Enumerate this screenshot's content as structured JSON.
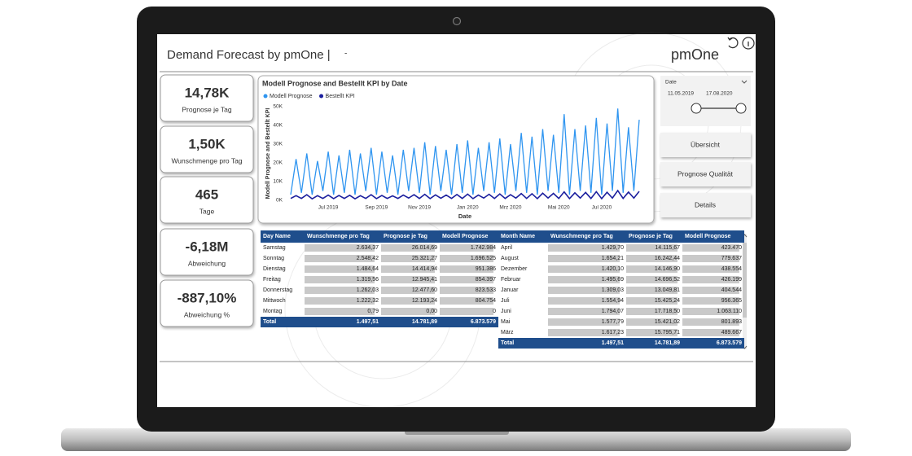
{
  "header": {
    "title": "Demand Forecast by pmOne |",
    "subtitle": "-",
    "logo": "pmOne"
  },
  "cards": [
    {
      "value": "14,78K",
      "label": "Prognose je Tag"
    },
    {
      "value": "1,50K",
      "label": "Wunschmenge pro Tag"
    },
    {
      "value": "465",
      "label": "Tage"
    },
    {
      "value": "-6,18M",
      "label": "Abweichung"
    },
    {
      "value": "-887,10%",
      "label": "Abweichung %"
    }
  ],
  "slicer": {
    "label": "Date",
    "start": "11.05.2019",
    "end": "17.08.2020"
  },
  "buttons": [
    "Übersicht",
    "Prognose Qualität",
    "Details"
  ],
  "chart_data": {
    "type": "line",
    "title": "Modell Prognose and Bestellt KPI by Date",
    "x_label": "Date",
    "y_label": "Modell Prognose and Bestellt KPI",
    "categories": [
      null,
      null,
      null,
      null,
      null,
      null,
      null,
      "Jul 2019",
      null,
      null,
      null,
      null,
      null,
      null,
      null,
      null,
      "Sep 2019",
      null,
      null,
      null,
      null,
      null,
      null,
      null,
      "Nov 2019",
      null,
      null,
      null,
      null,
      null,
      null,
      null,
      null,
      "Jan 2020",
      null,
      null,
      null,
      null,
      null,
      null,
      null,
      "Mrz 2020",
      null,
      null,
      null,
      null,
      null,
      null,
      null,
      null,
      "Mai 2020",
      null,
      null,
      null,
      null,
      null,
      null,
      null,
      "Jul 2020",
      null,
      null,
      null,
      null,
      null,
      null,
      null
    ],
    "series": [
      {
        "name": "Modell Prognose",
        "color": "#2f95f0",
        "values": [
          3000,
          22000,
          4000,
          25000,
          3000,
          21000,
          5000,
          26000,
          3000,
          24000,
          4000,
          27000,
          3000,
          25000,
          5000,
          28000,
          3000,
          26000,
          4000,
          24000,
          3000,
          27000,
          5000,
          28000,
          4000,
          31000,
          3000,
          29000,
          5000,
          27000,
          3000,
          30000,
          4000,
          32000,
          3000,
          28000,
          5000,
          31000,
          4000,
          33000,
          3000,
          30000,
          5000,
          36000,
          4000,
          34000,
          3000,
          38000,
          5000,
          35000,
          4000,
          46000,
          3000,
          38000,
          5000,
          40000,
          4000,
          44000,
          3000,
          41000,
          5000,
          49000,
          4000,
          39000,
          5000,
          43000
        ]
      },
      {
        "name": "Bestellt KPI",
        "color": "#1b1f9e",
        "values": [
          1000,
          2500,
          1000,
          3000,
          800,
          2500,
          1000,
          2800,
          900,
          2600,
          1000,
          2700,
          800,
          2500,
          1000,
          3000,
          900,
          2600,
          1000,
          2400,
          1000,
          2800,
          1200,
          3000,
          1000,
          3200,
          900,
          2900,
          1100,
          2800,
          1000,
          3100,
          1000,
          3300,
          900,
          2800,
          1200,
          3200,
          1000,
          3400,
          1000,
          3000,
          1200,
          3600,
          1000,
          3500,
          900,
          3800,
          1200,
          3700,
          1000,
          4500,
          900,
          4000,
          1200,
          4200,
          1000,
          4600,
          900,
          4300,
          1200,
          5200,
          1000,
          4400,
          1200,
          4800
        ]
      }
    ],
    "ylim": [
      0,
      50000
    ],
    "yticks": [
      {
        "value": 0,
        "label": "0K"
      },
      {
        "value": 10000,
        "label": "10K"
      },
      {
        "value": 20000,
        "label": "20K"
      },
      {
        "value": 30000,
        "label": "30K"
      },
      {
        "value": 40000,
        "label": "40K"
      },
      {
        "value": 50000,
        "label": "50K"
      }
    ],
    "grid": false
  },
  "tables": [
    {
      "columns": [
        "Day Name",
        "Wunschmenge pro Tag",
        "Prognose je Tag",
        "Modell Prognose"
      ],
      "rows": [
        [
          "Samstag",
          "2.634,37",
          "26.014,69",
          "1.742.984"
        ],
        [
          "Sonntag",
          "2.548,42",
          "25.321,27",
          "1.696.525"
        ],
        [
          "Dienstag",
          "1.484,64",
          "14.414,94",
          "951.386"
        ],
        [
          "Freitag",
          "1.319,56",
          "12.945,41",
          "854.397"
        ],
        [
          "Donnerstag",
          "1.262,03",
          "12.477,60",
          "823.533"
        ],
        [
          "Mittwoch",
          "1.222,32",
          "12.193,24",
          "804.754"
        ],
        [
          "Montag",
          "0,79",
          "0,00",
          "0"
        ]
      ],
      "total": [
        "Total",
        "1.497,51",
        "14.781,89",
        "6.873.579"
      ]
    },
    {
      "columns": [
        "Month Name",
        "Wunschmenge pro Tag",
        "Prognose je Tag",
        "Modell Prognose"
      ],
      "rows": [
        [
          "April",
          "1.429,70",
          "14.115,67",
          "423.470"
        ],
        [
          "August",
          "1.654,21",
          "16.242,44",
          "779.637"
        ],
        [
          "Dezember",
          "1.420,10",
          "14.146,90",
          "438.554"
        ],
        [
          "Februar",
          "1.495,69",
          "14.696,52",
          "426.199"
        ],
        [
          "Januar",
          "1.309,03",
          "13.049,81",
          "404.544"
        ],
        [
          "Juli",
          "1.554,94",
          "15.425,24",
          "956.365"
        ],
        [
          "Juni",
          "1.794,07",
          "17.718,50",
          "1.063.110"
        ],
        [
          "Mai",
          "1.577,79",
          "15.421,02",
          "801.893"
        ],
        [
          "März",
          "1.617,23",
          "15.795,71",
          "489.667"
        ]
      ],
      "total": [
        "Total",
        "1.497,51",
        "14.781,89",
        "6.873.579"
      ]
    }
  ]
}
